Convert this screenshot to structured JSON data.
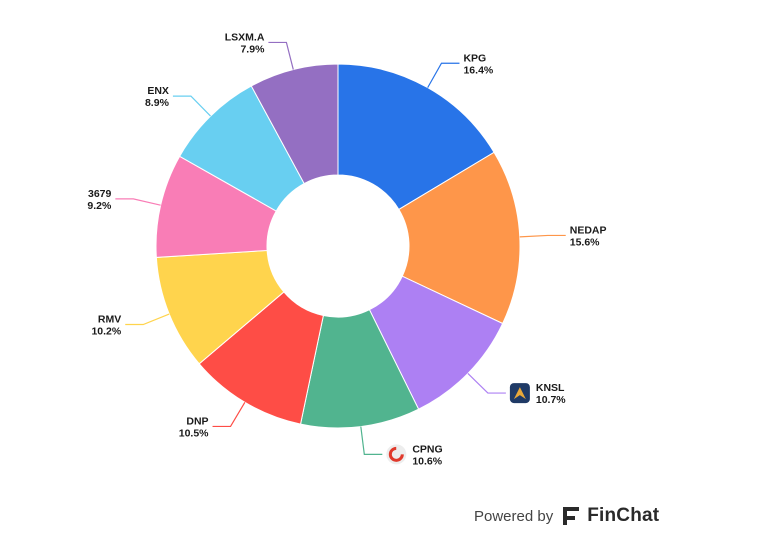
{
  "chart_data": {
    "type": "pie",
    "donut": true,
    "slices": [
      {
        "label": "KPG",
        "value": 16.4,
        "value_label": "16.4%",
        "color": "#2874E8",
        "logo": ""
      },
      {
        "label": "NEDAP",
        "value": 15.6,
        "value_label": "15.6%",
        "color": "#FE964A",
        "logo": ""
      },
      {
        "label": "KNSL",
        "value": 10.7,
        "value_label": "10.7%",
        "color": "#AD80F3",
        "logo": "knsl-logo-icon"
      },
      {
        "label": "CPNG",
        "value": 10.6,
        "value_label": "10.6%",
        "color": "#51B48F",
        "logo": "cpng-logo-icon"
      },
      {
        "label": "DNP",
        "value": 10.5,
        "value_label": "10.5%",
        "color": "#FE4D46",
        "logo": ""
      },
      {
        "label": "RMV",
        "value": 10.2,
        "value_label": "10.2%",
        "color": "#FFD44D",
        "logo": ""
      },
      {
        "label": "3679",
        "value": 9.2,
        "value_label": "9.2%",
        "color": "#F97DB6",
        "logo": ""
      },
      {
        "label": "ENX",
        "value": 8.9,
        "value_label": "8.9%",
        "color": "#68CFF1",
        "logo": ""
      },
      {
        "label": "LSXM.A",
        "value": 7.9,
        "value_label": "7.9%",
        "color": "#946FC2",
        "logo": ""
      }
    ],
    "start_angle_deg": 0,
    "direction": "clockwise",
    "legend": "none"
  },
  "branding": {
    "prefix": "Powered by",
    "name": "FinChat",
    "logo_icon": "finchat-logo-icon"
  }
}
